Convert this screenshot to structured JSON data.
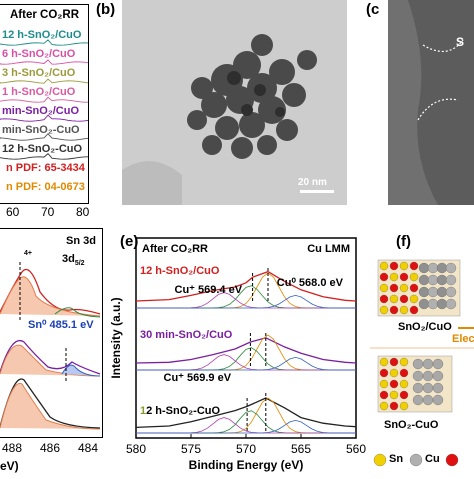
{
  "panel_a": {
    "title": "After CO₂RR",
    "labels": [
      {
        "text": "12 h-SnO₂/CuO",
        "color": "#1e8c8c"
      },
      {
        "text": "6 h-SnO₂/CuO",
        "color": "#d94fa6"
      },
      {
        "text": "3 h-SnO₂/CuO",
        "color": "#9a9a3a"
      },
      {
        "text": "1 h-SnO₂/CuO",
        "color": "#d85aa0"
      },
      {
        "text": "min-SnO₂/CuO",
        "color": "#7a1fa0"
      },
      {
        "text": "min-SnO₂-CuO",
        "color": "#555555"
      },
      {
        "text": "12 h-SnO₂-CuO",
        "color": "#333333"
      },
      {
        "text": "n PDF: 65-3434",
        "color": "#d22020"
      },
      {
        "text": "n PDF: 04-0673",
        "color": "#e08a00"
      }
    ],
    "x_ticks": [
      "60",
      "70",
      "80"
    ]
  },
  "panel_b": {
    "letter": "(b)",
    "scalebar": "20 nm"
  },
  "panel_c": {
    "letter": "(c",
    "overlay": "S"
  },
  "panel_d": {
    "header": "Sn 3d",
    "peak_label_top": "4+",
    "peak_label": "3d",
    "peak_sub": "5/2",
    "sn0_label": "Sn⁰ 485.1 eV",
    "x_ticks": [
      "488",
      "486",
      "484"
    ],
    "x_unit": "eV)"
  },
  "panel_e": {
    "letter": "(e)",
    "title": "After CO₂RR",
    "spectrum": "Cu LMM",
    "ylabel": "Intensity (a.u.)",
    "xlabel": "Binding Energy (eV)",
    "sample_labels": [
      {
        "text": "12 h-SnO₂/CuO",
        "color": "#d22020"
      },
      {
        "text": "30 min-SnO₂/CuO",
        "color": "#7a1fa0"
      },
      {
        "text": "12 h-SnO₂-CuO",
        "color": "#000000",
        "prefix": "1",
        "prefix_color": "#8a9a2a"
      }
    ],
    "annotations": [
      "Cu⁺ 569.4 eV",
      "Cu⁰ 568.0 eV",
      "Cu⁺ 569.9 eV"
    ],
    "x_ticks": [
      "580",
      "575",
      "570",
      "565",
      "560"
    ]
  },
  "panel_f": {
    "letter": "(f)",
    "label_top": "SnO₂/CuO",
    "label_bottom": "SnO₂-CuO",
    "side_text": "Elect",
    "legend": [
      {
        "text": "Sn",
        "color": "#f0d000"
      },
      {
        "text": "Cu",
        "color": "#b0b0b0"
      },
      {
        "text": "",
        "color": "#e01010"
      }
    ]
  },
  "chart_data": [
    {
      "type": "line",
      "panel": "a",
      "title": "After CO₂RR",
      "series": [
        {
          "name": "12 h-SnO₂/CuO"
        },
        {
          "name": "6 h-SnO₂/CuO"
        },
        {
          "name": "3 h-SnO₂/CuO"
        },
        {
          "name": "1 h-SnO₂/CuO"
        },
        {
          "name": "min-SnO₂/CuO"
        },
        {
          "name": "min-SnO₂-CuO"
        },
        {
          "name": "12 h-SnO₂-CuO"
        },
        {
          "name": "n PDF: 65-3434"
        },
        {
          "name": "n PDF: 04-0673"
        }
      ],
      "x_ticks": [
        60,
        70,
        80
      ]
    },
    {
      "type": "line",
      "panel": "e",
      "title": "After CO₂RR",
      "xlabel": "Binding Energy (eV)",
      "ylabel": "Intensity (a.u.)",
      "xlim": [
        580,
        560
      ],
      "x_ticks": [
        580,
        575,
        570,
        565,
        560
      ],
      "series": [
        {
          "name": "12 h-SnO₂/CuO",
          "x": [
            580,
            577,
            575,
            573,
            571,
            570,
            569.4,
            568.0,
            566.5,
            565,
            563,
            561,
            560
          ],
          "y": [
            0.1,
            0.12,
            0.18,
            0.25,
            0.3,
            0.36,
            0.44,
            0.52,
            0.38,
            0.26,
            0.16,
            0.11,
            0.1
          ]
        },
        {
          "name": "30 min-SnO₂/CuO",
          "x": [
            580,
            577,
            575,
            573,
            571,
            569.6,
            568.2,
            566.5,
            565,
            563,
            561,
            560
          ],
          "y": [
            0.1,
            0.11,
            0.15,
            0.22,
            0.3,
            0.4,
            0.46,
            0.33,
            0.24,
            0.15,
            0.11,
            0.1
          ]
        },
        {
          "name": "12 h-SnO₂-CuO",
          "x": [
            580,
            577,
            575,
            573,
            571,
            569.9,
            568.2,
            566.5,
            565,
            563,
            561,
            560
          ],
          "y": [
            0.08,
            0.1,
            0.16,
            0.24,
            0.32,
            0.38,
            0.5,
            0.36,
            0.22,
            0.14,
            0.1,
            0.09
          ]
        }
      ]
    }
  ]
}
